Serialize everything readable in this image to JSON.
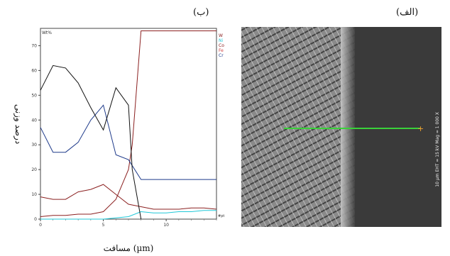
{
  "labels": {
    "panel_b": "(ب)",
    "panel_a": "(الف)",
    "xlabel": "مسافت (µm)",
    "ylabel": "درصد وزنی"
  },
  "micrograph": {
    "info_text": "10 µm  EHT = 15 kV  Mag = 1 000 X"
  },
  "colors": {
    "W": "#8b2020",
    "Ni": "#20c8d8",
    "Co": "#8b2020",
    "Fe": "#d04040",
    "Cr": "#1e3a8a",
    "black_series": "#111111"
  },
  "chart_data": {
    "type": "line",
    "xlabel": "مسافت (µm)",
    "ylabel": "درصد وزنی",
    "y_unit_label": "Wt%",
    "x_end_label": "#pt",
    "xlim": [
      0,
      14
    ],
    "ylim": [
      0,
      77
    ],
    "xticks": [
      0,
      5,
      10
    ],
    "yticks": [
      0,
      10,
      20,
      30,
      40,
      50,
      60,
      70
    ],
    "legend": [
      "W",
      "Ni",
      "Co",
      "Fe",
      "Cr"
    ],
    "legend_position": "top-right",
    "series": [
      {
        "name": "W",
        "color": "#8b2020",
        "x": [
          0,
          1,
          2,
          3,
          4,
          5,
          6,
          7,
          7.3,
          8,
          9,
          10,
          11,
          12,
          13,
          14
        ],
        "y": [
          1,
          1.5,
          1.5,
          2,
          2,
          3,
          8,
          20,
          30,
          76,
          76,
          76,
          76,
          76,
          76,
          76
        ]
      },
      {
        "name": "Ni",
        "color": "#20c8d8",
        "x": [
          0,
          2,
          4,
          5,
          6,
          7,
          8,
          9,
          10,
          11,
          12,
          13,
          14
        ],
        "y": [
          0,
          0,
          0,
          0,
          0.5,
          1,
          3,
          2.5,
          2.5,
          3,
          3,
          3.5,
          3.5
        ]
      },
      {
        "name": "Co",
        "color": "#8b2020",
        "x": [
          0,
          1,
          2,
          3,
          4,
          5,
          6,
          7,
          8,
          9,
          10,
          11,
          12,
          13,
          14
        ],
        "y": [
          9,
          8,
          8,
          11,
          12,
          14,
          10,
          6,
          5,
          4,
          4,
          4,
          4.5,
          4.5,
          4
        ]
      },
      {
        "name": "Cr",
        "color": "#1e3a8a",
        "x": [
          0,
          1,
          2,
          3,
          4,
          5,
          6,
          7,
          8,
          9,
          10,
          11,
          12,
          13,
          14
        ],
        "y": [
          37,
          27,
          27,
          31,
          40,
          46,
          26,
          24,
          16,
          16,
          16,
          16,
          16,
          16,
          16
        ]
      },
      {
        "name": "",
        "color": "#111111",
        "x": [
          0,
          1,
          2,
          3,
          4,
          5,
          6,
          7,
          7.3,
          8
        ],
        "y": [
          52,
          62,
          61,
          55,
          45,
          36,
          53,
          46,
          20,
          0
        ]
      }
    ]
  }
}
